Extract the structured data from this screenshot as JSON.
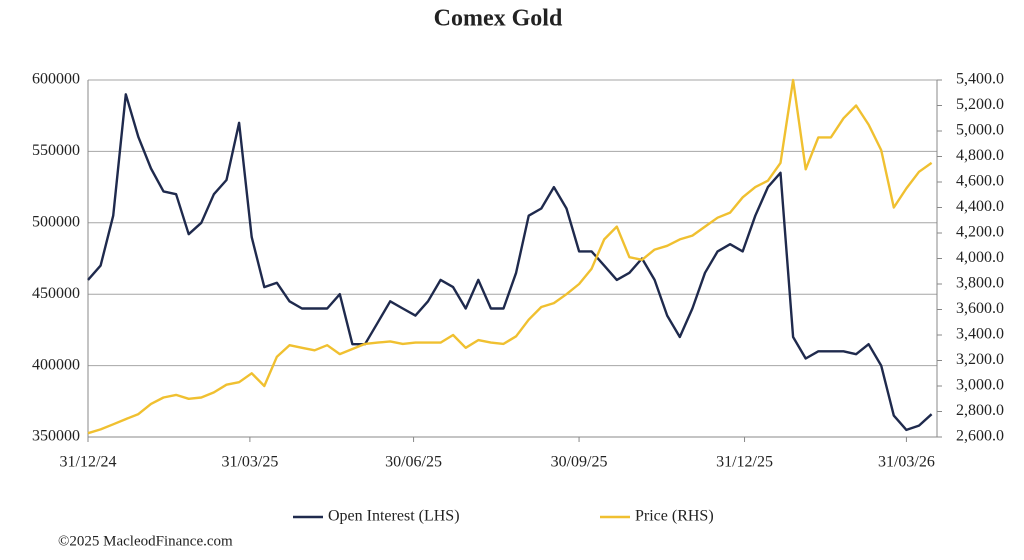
{
  "chart_data": {
    "type": "line",
    "title": "Comex Gold",
    "x": [
      "31/12/24",
      "07/01/25",
      "14/01/25",
      "21/01/25",
      "28/01/25",
      "04/02/25",
      "11/02/25",
      "18/02/25",
      "25/02/25",
      "04/03/25",
      "11/03/25",
      "18/03/25",
      "25/03/25",
      "01/04/25",
      "08/04/25",
      "15/04/25",
      "22/04/25",
      "29/04/25",
      "06/05/25",
      "13/05/25",
      "20/05/25",
      "27/05/25",
      "03/06/25",
      "10/06/25",
      "17/06/25",
      "24/06/25",
      "01/07/25",
      "08/07/25",
      "15/07/25",
      "22/07/25",
      "29/07/25",
      "05/08/25",
      "12/08/25",
      "19/08/25",
      "26/08/25",
      "02/09/25",
      "09/09/25",
      "16/09/25",
      "23/09/25",
      "30/09/25",
      "07/10/25",
      "14/10/25",
      "21/10/25",
      "28/10/25",
      "04/11/25",
      "11/11/25",
      "18/11/25",
      "25/11/25",
      "02/12/25",
      "09/12/25",
      "16/12/25",
      "23/12/25",
      "30/12/25",
      "06/01/26",
      "13/01/26",
      "20/01/26",
      "27/01/26",
      "03/02/26",
      "10/02/26",
      "17/02/26",
      "24/02/26",
      "03/03/26",
      "10/03/26",
      "17/03/26",
      "24/03/26",
      "31/03/26",
      "07/04/26",
      "14/04/26"
    ],
    "series": [
      {
        "name": "Open Interest (LHS)",
        "color": "#1f2a4d",
        "values": [
          460000,
          470000,
          505000,
          590000,
          560000,
          538000,
          522000,
          520000,
          492000,
          500000,
          520000,
          530000,
          570000,
          490000,
          455000,
          458000,
          445000,
          440000,
          440000,
          440000,
          450000,
          415000,
          415000,
          430000,
          445000,
          440000,
          435000,
          445000,
          460000,
          455000,
          440000,
          460000,
          440000,
          440000,
          465000,
          505000,
          510000,
          525000,
          510000,
          480000,
          480000,
          470000,
          460000,
          465000,
          475000,
          460000,
          435000,
          420000,
          440000,
          465000,
          480000,
          485000,
          480000,
          505000,
          525000,
          535000,
          420000,
          405000,
          410000,
          410000,
          410000,
          408000,
          415000,
          400000,
          365000,
          355000,
          358000,
          366000
        ]
      },
      {
        "name": "Price (RHS)",
        "color": "#f0c030",
        "axis": "y2",
        "values": [
          2630,
          2660,
          2700,
          2740,
          2780,
          2860,
          2910,
          2930,
          2900,
          2910,
          2950,
          3010,
          3030,
          3100,
          3000,
          3230,
          3320,
          3300,
          3280,
          3320,
          3250,
          3290,
          3330,
          3340,
          3350,
          3330,
          3340,
          3340,
          3340,
          3400,
          3300,
          3360,
          3340,
          3330,
          3390,
          3520,
          3620,
          3650,
          3720,
          3800,
          3920,
          4150,
          4250,
          4010,
          3990,
          4070,
          4100,
          4150,
          4180,
          4250,
          4320,
          4360,
          4480,
          4560,
          4610,
          4750,
          5400,
          4700,
          4950,
          4950,
          5100,
          5200,
          5050,
          4850,
          4400,
          4550,
          4680,
          4750
        ]
      }
    ],
    "xlim": [
      "31/12/24",
      "17/04/26"
    ],
    "xticks": [
      "31/12/24",
      "31/03/25",
      "30/06/25",
      "30/09/25",
      "31/12/25",
      "31/03/26"
    ],
    "ylim": [
      350000,
      600000
    ],
    "yticks": [
      350000,
      400000,
      450000,
      500000,
      550000,
      600000
    ],
    "y2lim": [
      2600,
      5400
    ],
    "y2ticks": [
      {
        "value": 2600,
        "label": "2,600.0"
      },
      {
        "value": 2800,
        "label": "2,800.0"
      },
      {
        "value": 3000,
        "label": "3,000.0"
      },
      {
        "value": 3200,
        "label": "3,200.0"
      },
      {
        "value": 3400,
        "label": "3,400.0"
      },
      {
        "value": 3600,
        "label": "3,600.0"
      },
      {
        "value": 3800,
        "label": "3,800.0"
      },
      {
        "value": 4000,
        "label": "4,000.0"
      },
      {
        "value": 4200,
        "label": "4,200.0"
      },
      {
        "value": 4400,
        "label": "4,400.0"
      },
      {
        "value": 4600,
        "label": "4,600.0"
      },
      {
        "value": 4800,
        "label": "4,800.0"
      },
      {
        "value": 5000,
        "label": "5,000.0"
      },
      {
        "value": 5200,
        "label": "5,200.0"
      },
      {
        "value": 5400,
        "label": "5,400.0"
      }
    ],
    "grid": true,
    "legend": "bottom"
  },
  "copyright": "©2025 MacleodFinance.com"
}
